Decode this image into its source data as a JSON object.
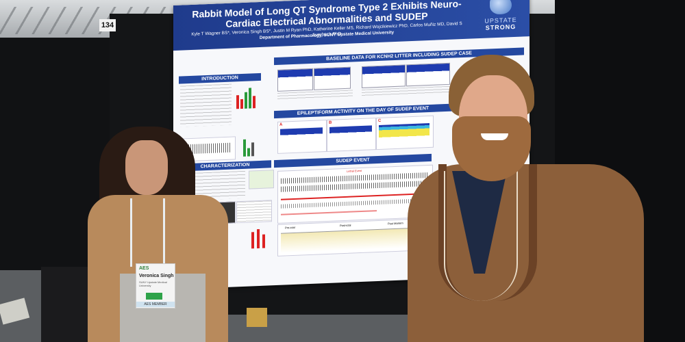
{
  "scene": {
    "booth_number": "134"
  },
  "poster": {
    "title": "Rabbit Model of Long QT Syndrome Type 2 Exhibits Neuro-Cardiac Electrical Abnormalities and SUDEP",
    "authors": "Kyle T Wagner BS*, Veronica Singh BS*, Justin M Ryan PhD, Katherine Keller MS, Richard Wojcikiewicz PhD, Carlos Muñiz MD, David S Auerbach PhD",
    "department": "Department of Pharmacology, SUNY Upstate Medical University",
    "logo_line1": "UPSTATE",
    "logo_line2": "STRONG",
    "sections": {
      "introduction": "INTRODUCTION",
      "baseline": "BASELINE DATA FOR KCNH2 LITTER INCLUDING SUDEP CASE",
      "epileptiform": "EPILEPTIFORM ACTIVITY ON THE DAY OF SUDEP EVENT",
      "characterization": "CHARACTERIZATION",
      "sudep": "SUDEP EVENT"
    },
    "panel_labels": {
      "a": "A",
      "b": "B",
      "c": "C"
    },
    "sudep_labels": {
      "lethal_event": "Lethal Event",
      "pre_ictal": "Pre-ictal",
      "post_ictal": "Post-ictal",
      "post_mortem": "Post Mortem"
    }
  },
  "badge": {
    "conference": "AES",
    "name": "Veronica Singh",
    "organization": "SUNY Upstate Medical University",
    "strip": "AES MEMBER"
  },
  "colors": {
    "poster_header": "#1f3b8c",
    "section_bar": "#2448a0"
  }
}
